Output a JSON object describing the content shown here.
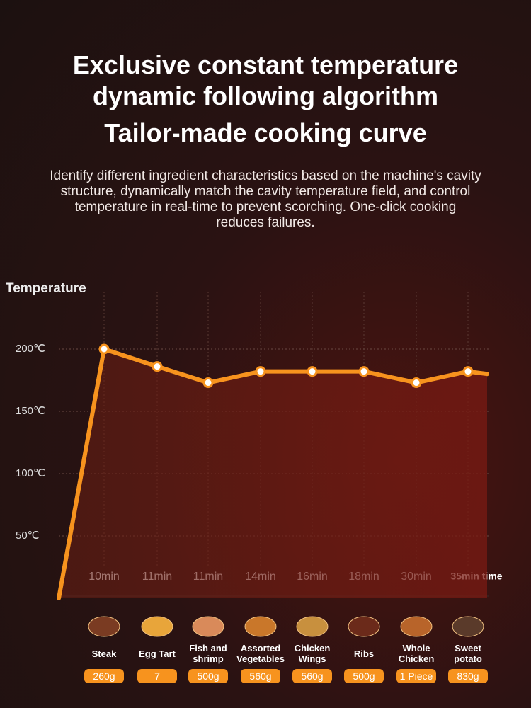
{
  "chart_data": {
    "type": "line",
    "title": "Exclusive constant temperature dynamic following algorithm",
    "subtitle": "Tailor-made cooking curve",
    "description": "Identify different ingredient characteristics based on the machine's cavity structure, dynamically match the cavity temperature field, and control temperature in real-time to prevent scorching. One-click cooking reduces failures.",
    "y_label": "Temperature",
    "categories": [
      null,
      "10min",
      "11min",
      "11min",
      "14min",
      "16min",
      "18min",
      "30min",
      "35min time",
      null
    ],
    "values": [
      0,
      200,
      186,
      173,
      182,
      182,
      182,
      173,
      182,
      180
    ],
    "color": "#f7931e",
    "ylim": [
      0,
      200
    ],
    "yticks": [
      {
        "value": 200,
        "label": "200℃"
      },
      {
        "value": 150,
        "label": "150℃"
      },
      {
        "value": 100,
        "label": "100℃"
      },
      {
        "value": 50,
        "label": "50℃"
      }
    ],
    "grid": true,
    "ingredients": [
      {
        "name": "Steak",
        "amount": "260g"
      },
      {
        "name": "Egg Tart",
        "amount": "7"
      },
      {
        "name": "Fish and shrimp",
        "amount": "500g"
      },
      {
        "name": "Assorted Vegetables",
        "amount": "560g"
      },
      {
        "name": "Chicken Wings",
        "amount": "560g"
      },
      {
        "name": "Ribs",
        "amount": "500g"
      },
      {
        "name": "Whole Chicken",
        "amount": "1 Piece"
      },
      {
        "name": "Sweet potato",
        "amount": "830g"
      }
    ]
  }
}
